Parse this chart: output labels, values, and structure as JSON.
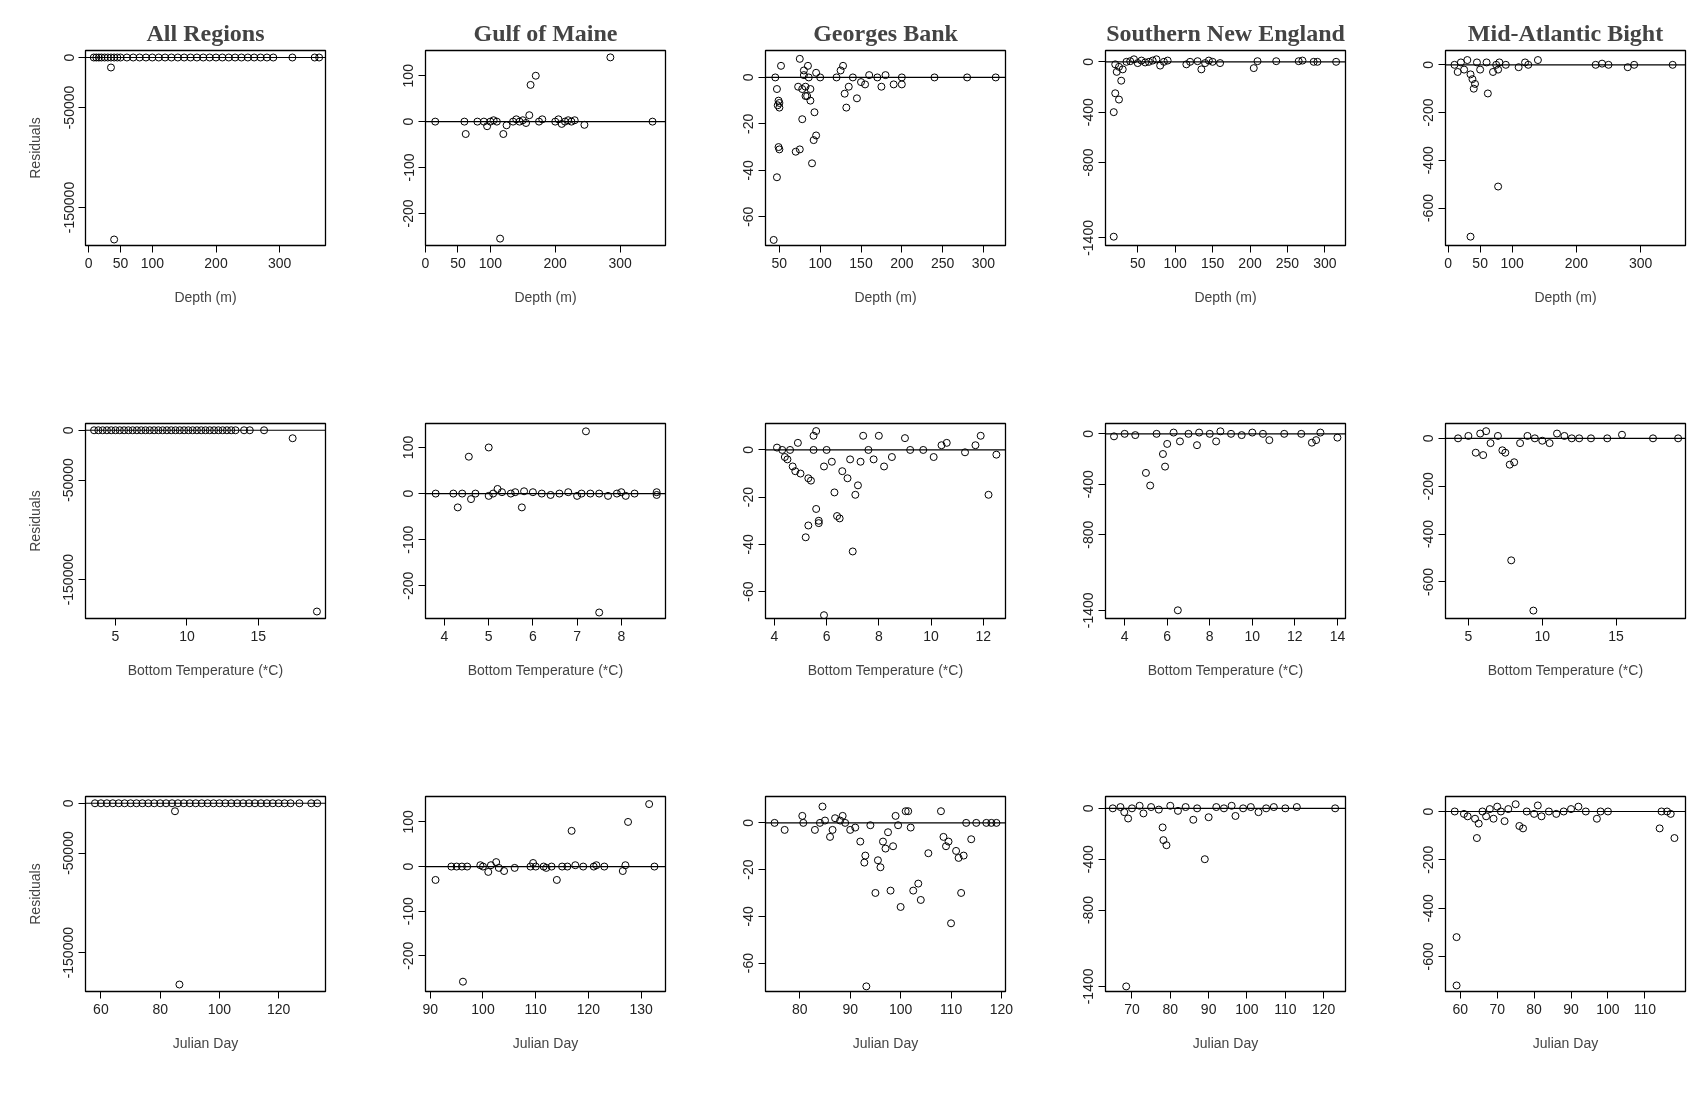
{
  "chart_data": [
    {
      "type": "scatter",
      "title": "All Regions",
      "xlabel": "Depth (m)",
      "ylabel": "Residuals",
      "marker": "circle",
      "color": "#000000",
      "xlim": [
        -5,
        372
      ],
      "ylim": [
        -188000,
        7000
      ],
      "xticks": [
        0,
        50,
        100,
        200,
        300
      ],
      "yticks": [
        0,
        -50000,
        -150000
      ],
      "ref_lines": [
        {
          "axis": "y",
          "value": 0
        }
      ],
      "x": [
        8,
        12,
        16,
        20,
        25,
        30,
        35,
        40,
        45,
        50,
        60,
        70,
        80,
        90,
        100,
        110,
        120,
        130,
        140,
        150,
        160,
        170,
        180,
        190,
        200,
        210,
        220,
        230,
        240,
        250,
        260,
        270,
        280,
        290,
        320,
        355,
        362,
        35,
        40
      ],
      "values": [
        0,
        0,
        0,
        0,
        0,
        0,
        0,
        0,
        0,
        0,
        0,
        0,
        0,
        0,
        0,
        0,
        0,
        0,
        0,
        0,
        0,
        0,
        0,
        0,
        0,
        0,
        0,
        0,
        0,
        0,
        0,
        0,
        0,
        0,
        0,
        0,
        0,
        -10000,
        -182000
      ]
    },
    {
      "type": "scatter",
      "title": "Gulf of Maine",
      "xlabel": "Depth (m)",
      "marker": "circle",
      "color": "#000000",
      "xlim": [
        0,
        370
      ],
      "ylim": [
        -270,
        155
      ],
      "xticks": [
        0,
        50,
        100,
        200,
        300
      ],
      "yticks": [
        100,
        0,
        -100,
        -200
      ],
      "ref_lines": [
        {
          "axis": "y",
          "value": 0
        }
      ],
      "x": [
        15,
        60,
        62,
        80,
        90,
        95,
        100,
        105,
        110,
        120,
        125,
        135,
        140,
        145,
        150,
        155,
        160,
        162,
        170,
        175,
        180,
        200,
        205,
        210,
        215,
        220,
        225,
        230,
        245,
        285,
        350,
        115
      ],
      "values": [
        0,
        0,
        -27,
        0,
        0,
        -10,
        0,
        3,
        0,
        -27,
        -8,
        0,
        5,
        0,
        3,
        -3,
        14,
        80,
        100,
        0,
        5,
        0,
        5,
        -5,
        0,
        3,
        0,
        3,
        -7,
        140,
        0,
        -255
      ]
    },
    {
      "type": "scatter",
      "title": "Georges Bank",
      "xlabel": "Depth (m)",
      "marker": "circle",
      "color": "#000000",
      "xlim": [
        33,
        327
      ],
      "ylim": [
        -72.4,
        11.6
      ],
      "xticks": [
        50,
        100,
        150,
        200,
        250,
        300
      ],
      "yticks": [
        0,
        -20,
        -40,
        -60
      ],
      "ref_lines": [
        {
          "axis": "y",
          "value": 0
        }
      ],
      "x": [
        45,
        47,
        48,
        49,
        50,
        50,
        52,
        49,
        50,
        47,
        43,
        70,
        75,
        73,
        75,
        78,
        80,
        82,
        84,
        85,
        86,
        88,
        90,
        92,
        95,
        93,
        88,
        80,
        95,
        100,
        120,
        125,
        128,
        130,
        132,
        135,
        140,
        145,
        150,
        155,
        160,
        170,
        175,
        180,
        190,
        200,
        200,
        240,
        280,
        315,
        78,
        82
      ],
      "values": [
        0,
        -5,
        -12,
        -10,
        -11,
        -13,
        5,
        -30,
        -31,
        -43,
        -70,
        -32,
        -31,
        -4,
        8,
        -18,
        1,
        -4,
        -8,
        5,
        0,
        -10,
        -37,
        -27,
        -25,
        -15,
        -5,
        3,
        2,
        0,
        0,
        3,
        5,
        -7,
        -13,
        -4,
        0,
        -9,
        -2,
        -3,
        1,
        0,
        -4,
        1,
        -3,
        0,
        -3,
        0,
        0,
        0,
        -5,
        -8
      ]
    },
    {
      "type": "scatter",
      "title": "Southern New England",
      "xlabel": "Depth (m)",
      "marker": "circle",
      "color": "#000000",
      "xlim": [
        7,
        327.5
      ],
      "ylim": [
        -1460,
        90
      ],
      "xticks": [
        50,
        100,
        150,
        200,
        250,
        300
      ],
      "yticks": [
        0,
        -400,
        -800,
        -1400
      ],
      "ref_lines": [
        {
          "axis": "y",
          "value": 0
        }
      ],
      "x": [
        20,
        22,
        20,
        18,
        25,
        28,
        30,
        25,
        35,
        40,
        45,
        50,
        55,
        60,
        65,
        70,
        75,
        80,
        85,
        90,
        115,
        120,
        130,
        135,
        140,
        145,
        150,
        160,
        205,
        210,
        235,
        265,
        270,
        285,
        290,
        315,
        18
      ],
      "values": [
        -20,
        -80,
        -250,
        -400,
        -300,
        -150,
        -60,
        -40,
        0,
        5,
        20,
        -10,
        10,
        -5,
        0,
        10,
        20,
        -30,
        0,
        10,
        -20,
        0,
        5,
        -60,
        -10,
        10,
        0,
        -10,
        -50,
        5,
        5,
        5,
        10,
        0,
        0,
        0,
        -1390
      ]
    },
    {
      "type": "scatter",
      "title": "Mid-Atlantic Bight",
      "xlabel": "Depth (m)",
      "marker": "circle",
      "color": "#000000",
      "xlim": [
        -4,
        370
      ],
      "ylim": [
        -757,
        60
      ],
      "xticks": [
        0,
        50,
        100,
        200,
        300
      ],
      "yticks": [
        0,
        -200,
        -400,
        -600
      ],
      "ref_lines": [
        {
          "axis": "y",
          "value": 0
        }
      ],
      "x": [
        10,
        15,
        20,
        25,
        30,
        35,
        38,
        40,
        42,
        45,
        50,
        60,
        62,
        70,
        75,
        78,
        80,
        78,
        90,
        110,
        120,
        125,
        140,
        230,
        240,
        250,
        280,
        290,
        350,
        35
      ],
      "values": [
        0,
        -30,
        10,
        -20,
        20,
        -40,
        -60,
        -100,
        -80,
        10,
        -20,
        10,
        -120,
        -30,
        0,
        -20,
        10,
        -510,
        0,
        -10,
        10,
        0,
        20,
        0,
        5,
        0,
        -10,
        0,
        0,
        -720
      ]
    },
    {
      "type": "scatter",
      "xlabel": "Bottom Temperature (*C)",
      "ylabel": "Residuals",
      "marker": "circle",
      "color": "#000000",
      "xlim": [
        2.9,
        19.7
      ],
      "ylim": [
        -189000,
        6800
      ],
      "xticks": [
        5,
        10,
        15
      ],
      "yticks": [
        0,
        -50000,
        -150000
      ],
      "ref_lines": [
        {
          "axis": "y",
          "value": 0
        }
      ],
      "x": [
        3.5,
        3.8,
        4.1,
        4.4,
        4.7,
        5,
        5.3,
        5.6,
        5.9,
        6.2,
        6.5,
        6.8,
        7.1,
        7.4,
        7.7,
        8,
        8.3,
        8.6,
        8.9,
        9.2,
        9.5,
        9.8,
        10.1,
        10.4,
        10.7,
        11,
        11.3,
        11.6,
        11.9,
        12.2,
        12.5,
        12.8,
        13.1,
        13.4,
        14,
        14.4,
        15.4,
        17.4,
        19.1
      ],
      "values": [
        0,
        0,
        0,
        0,
        0,
        0,
        0,
        0,
        0,
        0,
        0,
        0,
        0,
        0,
        0,
        0,
        0,
        0,
        0,
        0,
        0,
        0,
        0,
        0,
        0,
        0,
        0,
        0,
        0,
        0,
        0,
        0,
        0,
        0,
        0,
        0,
        0,
        -8000,
        -182000
      ]
    },
    {
      "type": "scatter",
      "xlabel": "Bottom Temperature (*C)",
      "marker": "circle",
      "color": "#000000",
      "xlim": [
        3.57,
        9.0
      ],
      "ylim": [
        -271,
        152
      ],
      "xticks": [
        4,
        5,
        6,
        7,
        8
      ],
      "yticks": [
        100,
        0,
        -100,
        -200
      ],
      "ref_lines": [
        {
          "axis": "y",
          "value": 0
        }
      ],
      "x": [
        3.8,
        4.2,
        4.3,
        4.4,
        4.55,
        4.6,
        4.7,
        5.0,
        5.0,
        5.1,
        5.2,
        5.3,
        5.5,
        5.6,
        5.75,
        5.8,
        6.0,
        6.2,
        6.4,
        6.6,
        6.8,
        7.0,
        7.1,
        7.2,
        7.3,
        7.5,
        7.5,
        7.7,
        7.9,
        8.0,
        8.1,
        8.3,
        8.8,
        8.8
      ],
      "values": [
        0,
        0,
        -30,
        0,
        80,
        -12,
        0,
        100,
        -5,
        0,
        10,
        3,
        0,
        3,
        -30,
        5,
        3,
        0,
        -3,
        0,
        3,
        -5,
        0,
        135,
        0,
        -258,
        0,
        -5,
        0,
        3,
        -5,
        0,
        -3,
        3
      ]
    },
    {
      "type": "scatter",
      "xlabel": "Bottom Temperature (*C)",
      "marker": "circle",
      "color": "#000000",
      "xlim": [
        3.66,
        12.85
      ],
      "ylim": [
        -71.4,
        11.2
      ],
      "xticks": [
        4,
        6,
        8,
        10,
        12
      ],
      "yticks": [
        0,
        -20,
        -40,
        -60
      ],
      "ref_lines": [
        {
          "axis": "y",
          "value": 0
        }
      ],
      "x": [
        4.1,
        4.3,
        4.4,
        4.5,
        4.6,
        4.7,
        4.8,
        4.9,
        5.0,
        5.2,
        5.3,
        5.3,
        5.4,
        5.5,
        5.5,
        5.6,
        5.6,
        5.7,
        5.7,
        5.9,
        5.9,
        6.0,
        6.2,
        6.3,
        6.4,
        6.5,
        6.6,
        6.8,
        7.0,
        6.9,
        7.1,
        7.2,
        7.3,
        7.4,
        7.6,
        7.8,
        8.0,
        8.2,
        8.5,
        9.0,
        9.2,
        9.7,
        10.1,
        10.4,
        10.6,
        11.3,
        11.7,
        11.9,
        12.2,
        12.5
      ],
      "values": [
        1,
        0,
        -3,
        -4,
        0,
        -7,
        -9,
        3,
        -10,
        -37,
        -32,
        -12,
        -13,
        0,
        6,
        8,
        -25,
        -31,
        -30,
        -70,
        -7,
        0,
        -5,
        -18,
        -28,
        -29,
        -9,
        -12,
        -43,
        -4,
        -19,
        -15,
        -5,
        6,
        0,
        -4,
        6,
        -7,
        -3,
        5,
        0,
        0,
        -3,
        2,
        3,
        -1,
        2,
        6,
        -19,
        -2
      ]
    },
    {
      "type": "scatter",
      "xlabel": "Bottom Temperature (*C)",
      "marker": "circle",
      "color": "#000000",
      "xlim": [
        3.1,
        14.38
      ],
      "ylim": [
        -1465,
        82
      ],
      "xticks": [
        4,
        6,
        8,
        10,
        12,
        14
      ],
      "yticks": [
        0,
        -400,
        -800,
        -1400
      ],
      "ref_lines": [
        {
          "axis": "y",
          "value": 0
        }
      ],
      "x": [
        3.5,
        4,
        4.5,
        5,
        5.2,
        5.5,
        5.8,
        5.9,
        6,
        6.3,
        6.5,
        6.6,
        7,
        7.4,
        7.5,
        8,
        8.3,
        8.5,
        9,
        9.5,
        10,
        10.5,
        10.8,
        11.5,
        12.3,
        12.8,
        13,
        13.2,
        14
      ],
      "values": [
        -20,
        0,
        -10,
        -310,
        -410,
        0,
        -160,
        -260,
        -80,
        10,
        -1400,
        -60,
        0,
        -90,
        10,
        0,
        -60,
        20,
        0,
        -10,
        10,
        0,
        -50,
        0,
        0,
        -70,
        -50,
        10,
        -30
      ]
    },
    {
      "type": "scatter",
      "xlabel": "Bottom Temperature (*C)",
      "marker": "circle",
      "color": "#000000",
      "xlim": [
        3.45,
        19.7
      ],
      "ylim": [
        -753,
        62
      ],
      "xticks": [
        5,
        10,
        15
      ],
      "yticks": [
        0,
        -200,
        -400,
        -600
      ],
      "ref_lines": [
        {
          "axis": "y",
          "value": 0
        }
      ],
      "x": [
        4.3,
        5,
        5.5,
        5.8,
        6,
        6.2,
        6.5,
        7,
        7.3,
        7.5,
        7.8,
        8.1,
        7.9,
        8.5,
        9,
        9.4,
        9.5,
        10,
        10.5,
        11,
        11.5,
        12,
        12.5,
        13.3,
        14.4,
        15.4,
        17.5,
        19.2
      ],
      "values": [
        0,
        10,
        -60,
        20,
        -70,
        30,
        -20,
        10,
        -50,
        -60,
        -110,
        -100,
        -510,
        -20,
        10,
        -720,
        0,
        -10,
        -20,
        20,
        10,
        0,
        0,
        0,
        0,
        15,
        0,
        0
      ]
    },
    {
      "type": "scatter",
      "xlabel": "Julian Day",
      "ylabel": "Residuals",
      "marker": "circle",
      "color": "#000000",
      "xlim": [
        54.8,
        135.8
      ],
      "ylim": [
        -189000,
        6800
      ],
      "xticks": [
        60,
        80,
        100,
        120
      ],
      "yticks": [
        0,
        -50000,
        -150000
      ],
      "ref_lines": [
        {
          "axis": "y",
          "value": 0
        }
      ],
      "x": [
        58,
        60,
        62,
        64,
        66,
        68,
        70,
        72,
        74,
        76,
        78,
        80,
        82,
        84,
        86,
        88,
        90,
        92,
        94,
        96,
        98,
        100,
        102,
        104,
        106,
        108,
        110,
        112,
        114,
        116,
        118,
        120,
        122,
        124,
        127,
        131,
        133,
        85,
        86.5
      ],
      "values": [
        0,
        0,
        0,
        0,
        0,
        0,
        0,
        0,
        0,
        0,
        0,
        0,
        0,
        0,
        0,
        0,
        0,
        0,
        0,
        0,
        0,
        0,
        0,
        0,
        0,
        0,
        0,
        0,
        0,
        0,
        0,
        0,
        0,
        0,
        0,
        0,
        0,
        -8000,
        -182000
      ]
    },
    {
      "type": "scatter",
      "xlabel": "Julian Day",
      "marker": "circle",
      "color": "#000000",
      "xlim": [
        89.1,
        134.6
      ],
      "ylim": [
        -280,
        157
      ],
      "xticks": [
        90,
        100,
        110,
        120,
        130
      ],
      "yticks": [
        100,
        0,
        -100,
        -200
      ],
      "ref_lines": [
        {
          "axis": "y",
          "value": 0
        }
      ],
      "x": [
        91,
        94,
        95,
        96,
        96.2,
        97,
        99.5,
        100,
        101,
        101.5,
        102.5,
        103,
        104,
        106,
        109,
        109.5,
        110,
        111.5,
        112,
        113,
        114,
        115,
        116,
        116.8,
        117.5,
        119,
        121,
        121.5,
        123,
        126.5,
        127,
        127.5,
        131.5,
        132.5
      ],
      "values": [
        -30,
        0,
        0,
        0,
        -258,
        0,
        3,
        0,
        -12,
        3,
        10,
        -3,
        -10,
        -3,
        0,
        8,
        0,
        0,
        -3,
        0,
        -30,
        0,
        0,
        80,
        3,
        0,
        0,
        3,
        0,
        -10,
        3,
        100,
        140,
        0
      ]
    },
    {
      "type": "scatter",
      "xlabel": "Julian Day",
      "marker": "circle",
      "color": "#000000",
      "xlim": [
        73.2,
        120.8
      ],
      "ylim": [
        -72.2,
        11.3
      ],
      "xticks": [
        80,
        90,
        100,
        110,
        120
      ],
      "yticks": [
        0,
        -20,
        -40,
        -60
      ],
      "ref_lines": [
        {
          "axis": "y",
          "value": 0
        }
      ],
      "x": [
        75,
        77,
        80.5,
        80.7,
        83,
        84,
        84.5,
        85,
        86,
        86.5,
        87,
        88,
        88.5,
        89,
        90,
        91,
        92,
        92.8,
        93,
        93.2,
        94,
        95,
        95.5,
        96,
        96.5,
        97,
        97.5,
        98,
        98.5,
        99,
        99.5,
        100,
        101,
        101.5,
        102,
        102.5,
        103.5,
        104,
        105.5,
        108,
        108.5,
        109,
        109.5,
        110,
        111,
        111.5,
        112,
        112.5,
        113,
        114,
        115,
        117,
        118,
        119
      ],
      "values": [
        0,
        -3,
        3,
        0,
        -3,
        0,
        7,
        1,
        -6,
        -3,
        2,
        1,
        3,
        0,
        -3,
        -2,
        -8,
        -17,
        -14,
        -70,
        -1,
        -30,
        -16,
        -19,
        -8,
        -11,
        -4,
        -29,
        -10,
        3,
        -1,
        -36,
        5,
        5,
        -2,
        -29,
        -26,
        -33,
        -13,
        5,
        -6,
        -10,
        -8,
        -43,
        -12,
        -15,
        -30,
        -14,
        0,
        -7,
        0,
        0,
        0,
        0
      ]
    },
    {
      "type": "scatter",
      "xlabel": "Julian Day",
      "marker": "circle",
      "color": "#000000",
      "xlim": [
        63.1,
        125.7
      ],
      "ylim": [
        -1440,
        93
      ],
      "xticks": [
        70,
        80,
        90,
        100,
        110,
        120
      ],
      "yticks": [
        0,
        -400,
        -800,
        -1400
      ],
      "ref_lines": [
        {
          "axis": "y",
          "value": 0
        }
      ],
      "x": [
        65,
        67,
        68,
        68.5,
        69,
        70,
        72,
        73,
        75,
        77,
        78,
        78.2,
        79,
        80,
        82,
        84,
        86,
        87,
        89,
        90,
        92,
        94,
        96,
        97,
        99,
        101,
        103,
        105,
        107,
        110,
        113,
        123
      ],
      "values": [
        0,
        10,
        -30,
        -1400,
        -80,
        0,
        20,
        -40,
        10,
        -10,
        -150,
        -250,
        -290,
        20,
        -20,
        10,
        -90,
        0,
        -400,
        -70,
        10,
        0,
        20,
        -60,
        0,
        10,
        -30,
        0,
        10,
        0,
        10,
        0
      ]
    },
    {
      "type": "scatter",
      "xlabel": "Julian Day",
      "marker": "circle",
      "color": "#000000",
      "xlim": [
        56,
        121
      ],
      "ylim": [
        -745,
        62
      ],
      "xticks": [
        60,
        70,
        80,
        90,
        100,
        110
      ],
      "yticks": [
        0,
        -200,
        -400,
        -600
      ],
      "ref_lines": [
        {
          "axis": "y",
          "value": 0
        }
      ],
      "x": [
        58.5,
        59,
        59,
        61,
        62,
        64,
        64.5,
        65,
        66,
        67,
        68,
        69,
        70,
        71,
        72,
        73,
        75,
        76,
        77,
        78,
        80,
        81,
        82,
        84,
        86,
        88,
        90,
        92,
        94,
        97,
        98,
        100,
        114,
        114.5,
        116,
        117,
        118
      ],
      "values": [
        0,
        -520,
        -720,
        -10,
        -20,
        -30,
        -110,
        -50,
        0,
        -20,
        10,
        -30,
        20,
        0,
        -40,
        10,
        30,
        -60,
        -70,
        0,
        -10,
        25,
        -20,
        0,
        -10,
        0,
        10,
        20,
        0,
        -30,
        0,
        0,
        -70,
        0,
        0,
        -10,
        -110
      ]
    }
  ]
}
